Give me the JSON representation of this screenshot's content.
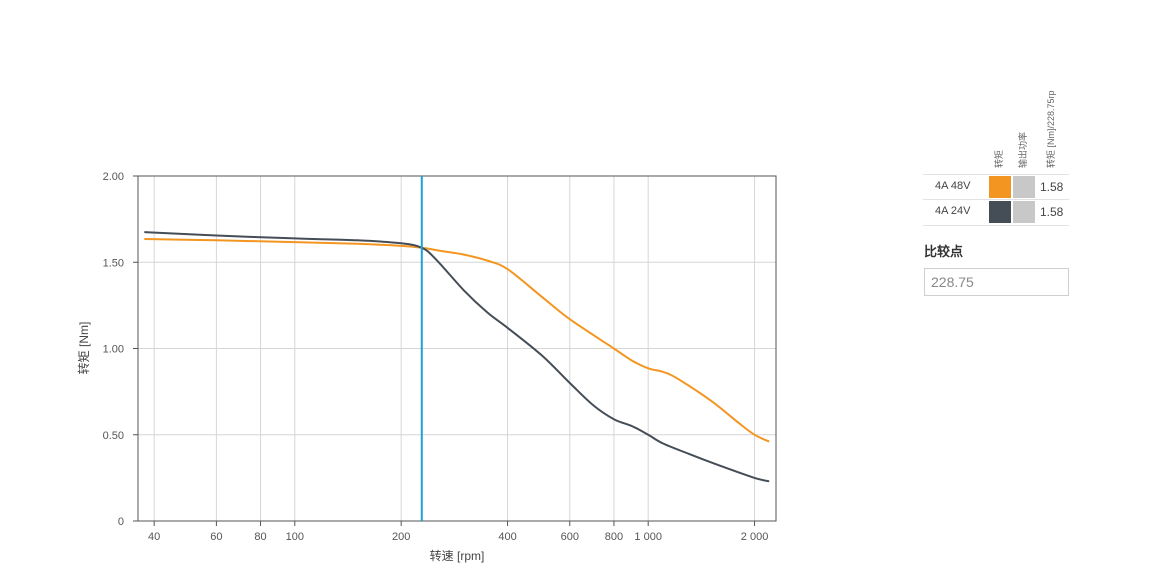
{
  "chart_data": {
    "type": "line",
    "xlabel": "转速 [rpm]",
    "ylabel": "转矩 [Nm]",
    "x_scale": "log",
    "xlim": [
      36,
      2300
    ],
    "ylim": [
      0,
      2
    ],
    "x_ticks": [
      {
        "value": 40,
        "label": "40"
      },
      {
        "value": 60,
        "label": "60"
      },
      {
        "value": 80,
        "label": "80"
      },
      {
        "value": 100,
        "label": "100"
      },
      {
        "value": 200,
        "label": "200"
      },
      {
        "value": 400,
        "label": "400"
      },
      {
        "value": 600,
        "label": "600"
      },
      {
        "value": 800,
        "label": "800"
      },
      {
        "value": 1000,
        "label": "1 000"
      },
      {
        "value": 2000,
        "label": "2 000"
      }
    ],
    "y_ticks": [
      {
        "value": 0,
        "label": "0"
      },
      {
        "value": 0.5,
        "label": "0.50"
      },
      {
        "value": 1.0,
        "label": "1.00"
      },
      {
        "value": 1.5,
        "label": "1.50"
      },
      {
        "value": 2.0,
        "label": "2.00"
      }
    ],
    "grid": true,
    "compare_line_x": 228.75,
    "series": [
      {
        "name": "4A 48V",
        "color": "#f39621",
        "x": [
          37.5,
          60,
          100,
          150,
          200,
          228.75,
          260,
          300,
          350,
          400,
          500,
          600,
          800,
          900,
          1000,
          1100,
          1200,
          1500,
          1800,
          2000,
          2200
        ],
        "y": [
          1.635,
          1.627,
          1.617,
          1.607,
          1.595,
          1.584,
          1.565,
          1.545,
          1.51,
          1.46,
          1.3,
          1.17,
          1.0,
          0.93,
          0.885,
          0.865,
          0.83,
          0.7,
          0.57,
          0.5,
          0.46
        ]
      },
      {
        "name": "4A 24V",
        "color": "#454d57",
        "x": [
          37.5,
          60,
          100,
          150,
          200,
          228.75,
          250,
          300,
          350,
          400,
          500,
          600,
          700,
          800,
          900,
          1000,
          1100,
          1300,
          1600,
          2000,
          2200
        ],
        "y": [
          1.675,
          1.655,
          1.638,
          1.627,
          1.61,
          1.584,
          1.52,
          1.34,
          1.21,
          1.12,
          0.96,
          0.8,
          0.67,
          0.59,
          0.55,
          0.5,
          0.45,
          0.39,
          0.32,
          0.25,
          0.23
        ]
      }
    ]
  },
  "legend": {
    "columns": [
      "转矩",
      "输出功率",
      "转矩 [Nm]/228.75rp"
    ],
    "rows": [
      {
        "label": "4A 48V",
        "torque_color": "#f39621",
        "power_color": "#c8c8c8",
        "value": "1.58"
      },
      {
        "label": "4A 24V",
        "torque_color": "#454d57",
        "power_color": "#c8c8c8",
        "value": "1.58"
      }
    ]
  },
  "compare": {
    "label": "比较点",
    "value": "228.75"
  },
  "colors": {
    "grid": "#d6d6d6",
    "axis": "#555555",
    "compare_line": "#1aa3d1"
  }
}
